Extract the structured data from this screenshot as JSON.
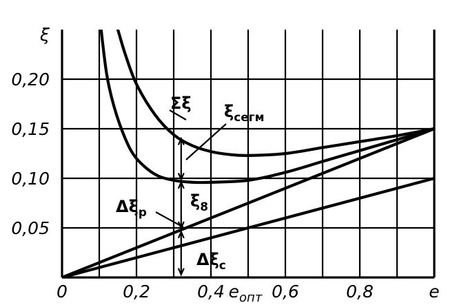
{
  "chart_data": {
    "type": "line",
    "xlim": [
      0,
      1.0
    ],
    "ylim": [
      0,
      0.25
    ],
    "grid": true,
    "x_tick_labels": [
      {
        "value": 0,
        "label": "0"
      },
      {
        "value": 0.2,
        "label": "0,2"
      },
      {
        "value": 0.4,
        "label": "0,4"
      },
      {
        "value": 0.6,
        "label": "0,6"
      },
      {
        "value": 0.8,
        "label": "0,8"
      },
      {
        "value": 1.0,
        "label": "e"
      }
    ],
    "y_tick_labels": [
      {
        "value": 0.05,
        "label": "0,05"
      },
      {
        "value": 0.1,
        "label": "0,10"
      },
      {
        "value": 0.15,
        "label": "0,15"
      },
      {
        "value": 0.2,
        "label": "0,20"
      },
      {
        "value": 0.245,
        "label": "ξ"
      }
    ],
    "x_special_label": {
      "value": 0.5,
      "label": "e",
      "subscript": "опт"
    },
    "series": [
      {
        "name": "Σξ",
        "x": [
          0.15,
          0.17,
          0.2,
          0.25,
          0.3,
          0.35,
          0.4,
          0.45,
          0.5,
          0.6,
          0.7,
          0.8,
          0.9,
          1.0
        ],
        "y": [
          0.25,
          0.225,
          0.195,
          0.164,
          0.144,
          0.133,
          0.127,
          0.124,
          0.123,
          0.125,
          0.131,
          0.137,
          0.143,
          0.15
        ]
      },
      {
        "name": "ξсегм",
        "x": [
          0.105,
          0.12,
          0.14,
          0.17,
          0.2,
          0.25,
          0.3,
          0.35,
          0.4,
          0.5,
          0.6,
          0.7,
          0.8,
          0.9,
          1.0
        ],
        "y": [
          0.25,
          0.205,
          0.172,
          0.14,
          0.12,
          0.104,
          0.098,
          0.096,
          0.096,
          0.098,
          0.106,
          0.117,
          0.128,
          0.139,
          0.15
        ]
      },
      {
        "name": "Δξр",
        "x": [
          0,
          1.0
        ],
        "y": [
          0,
          0.15
        ]
      },
      {
        "name": "Δξс",
        "x": [
          0,
          1.0
        ],
        "y": [
          0,
          0.1
        ]
      }
    ],
    "annotations": [
      {
        "id": "sum",
        "text": "Σξ"
      },
      {
        "id": "seg",
        "text": "ξ",
        "sub": "сегм"
      },
      {
        "id": "dp",
        "text": "Δξ",
        "sub": "р"
      },
      {
        "id": "x8",
        "text": "ξ",
        "sub": "8"
      },
      {
        "id": "dc",
        "text": "Δξ",
        "sub": "с"
      }
    ],
    "markers": {
      "x": 0.32
    }
  }
}
